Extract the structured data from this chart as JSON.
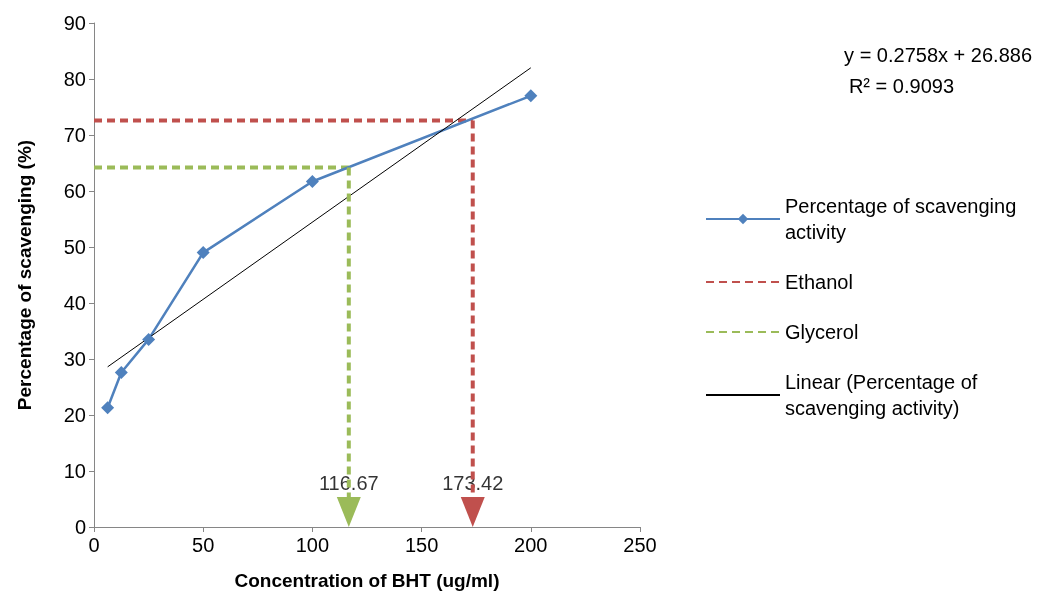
{
  "chart_data": {
    "type": "line",
    "xlabel": "Concentration of BHT (ug/ml)",
    "ylabel": "Percentage of scavenging (%)",
    "xlim": [
      0,
      250
    ],
    "xticks": [
      0,
      50,
      100,
      150,
      200,
      250
    ],
    "ylim": [
      0,
      90
    ],
    "yticks": [
      0,
      10,
      20,
      30,
      40,
      50,
      60,
      70,
      80,
      90
    ],
    "grid": false,
    "legend": "right",
    "series": [
      {
        "name": "Percentage of scavenging activity",
        "color": "#4f81bd",
        "x": [
          6.25,
          12.5,
          25,
          50,
          100,
          200
        ],
        "values": [
          21.3,
          27.6,
          33.5,
          49.0,
          61.7,
          77.0
        ],
        "marker": "diamond",
        "line_style": "solid"
      },
      {
        "name": "Ethanol",
        "color": "#c0504d",
        "x": [
          0,
          173.42
        ],
        "values": [
          72.6,
          72.6
        ],
        "marker": "none",
        "line_style": "dashed"
      },
      {
        "name": "Glycerol",
        "color": "#9bbb59",
        "x": [
          0,
          116.67
        ],
        "values": [
          64.2,
          64.2
        ],
        "marker": "none",
        "line_style": "dashed"
      },
      {
        "name": "Linear (Percentage of scavenging activity)",
        "color": "#000000",
        "x": [
          6.25,
          200
        ],
        "values": [
          28.6,
          82.0
        ],
        "marker": "none",
        "line_style": "solid"
      }
    ],
    "annotations": [
      "y = 0.2758x + 26.886",
      "R² = 0.9093",
      "116.67",
      "173.42"
    ]
  }
}
